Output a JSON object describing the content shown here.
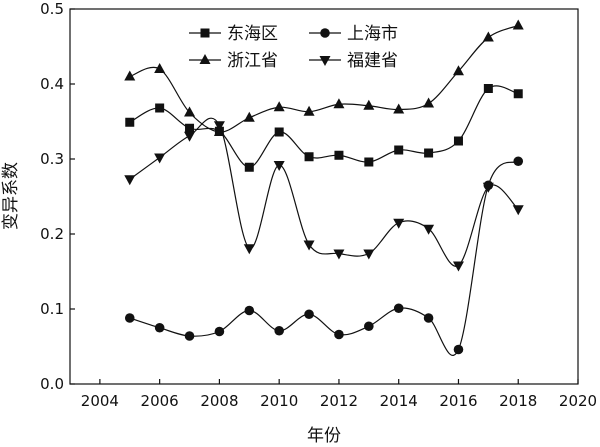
{
  "chart_data": {
    "type": "line",
    "title": "",
    "xlabel": "年份",
    "ylabel": "变异系数",
    "xlim": [
      2003,
      2020
    ],
    "ylim": [
      0,
      0.5
    ],
    "xticks": [
      2004,
      2006,
      2008,
      2010,
      2012,
      2014,
      2016,
      2018,
      2020
    ],
    "yticks": [
      0.0,
      0.1,
      0.2,
      0.3,
      0.4,
      0.5
    ],
    "x": [
      2005,
      2006,
      2007,
      2008,
      2009,
      2010,
      2011,
      2012,
      2013,
      2014,
      2015,
      2016,
      2017,
      2018
    ],
    "grid": false,
    "legend_position": "top-center",
    "series": [
      {
        "name": "东海区",
        "marker": "square",
        "values": [
          0.349,
          0.368,
          0.341,
          0.337,
          0.289,
          0.336,
          0.303,
          0.305,
          0.296,
          0.312,
          0.308,
          0.324,
          0.394,
          0.387
        ]
      },
      {
        "name": "上海市",
        "marker": "circle",
        "values": [
          0.088,
          0.075,
          0.064,
          0.07,
          0.098,
          0.071,
          0.093,
          0.066,
          0.077,
          0.101,
          0.088,
          0.046,
          0.265,
          0.297
        ]
      },
      {
        "name": "浙江省",
        "marker": "triangle-up",
        "values": [
          0.41,
          0.42,
          0.362,
          0.336,
          0.355,
          0.369,
          0.363,
          0.373,
          0.371,
          0.366,
          0.374,
          0.417,
          0.462,
          0.478
        ]
      },
      {
        "name": "福建省",
        "marker": "triangle-down",
        "values": [
          0.273,
          0.302,
          0.331,
          0.345,
          0.181,
          0.292,
          0.186,
          0.174,
          0.174,
          0.215,
          0.207,
          0.158,
          0.263,
          0.233
        ]
      }
    ]
  }
}
